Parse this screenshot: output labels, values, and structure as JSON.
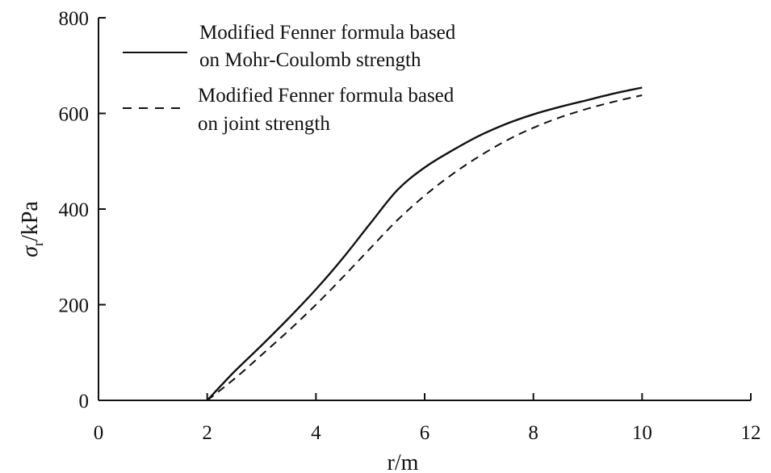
{
  "chart_data": {
    "type": "line",
    "xlabel": "r/m",
    "ylabel_symbol": "σ",
    "ylabel_subscript": "r",
    "ylabel_unit": "/kPa",
    "xlim": [
      0,
      12
    ],
    "ylim": [
      0,
      800
    ],
    "xticks": [
      0,
      2,
      4,
      6,
      8,
      10,
      12
    ],
    "yticks": [
      0,
      200,
      400,
      600,
      800
    ],
    "grid": false,
    "legend_position": "top-left",
    "series": [
      {
        "name": "Modified Fenner formula based on Mohr-Coulomb strength",
        "legend_lines": [
          "Modified Fenner formula based",
          "on Mohr-Coulomb strength"
        ],
        "style": "solid",
        "color": "#111111",
        "x": [
          2.0,
          2.5,
          3.0,
          3.5,
          4.0,
          4.5,
          5.0,
          5.5,
          6.0,
          6.5,
          7.0,
          7.5,
          8.0,
          8.5,
          9.0,
          9.5,
          10.0
        ],
        "y": [
          0,
          60,
          115,
          172,
          232,
          298,
          370,
          440,
          487,
          522,
          553,
          578,
          598,
          614,
          628,
          642,
          654
        ]
      },
      {
        "name": "Modified Fenner formula based on joint strength",
        "legend_lines": [
          "Modified Fenner formula based",
          "on joint strength"
        ],
        "style": "dashed",
        "color": "#111111",
        "x": [
          2.0,
          2.5,
          3.0,
          3.5,
          4.0,
          4.5,
          5.0,
          5.5,
          6.0,
          6.5,
          7.0,
          7.5,
          8.0,
          8.5,
          9.0,
          9.5,
          10.0
        ],
        "y": [
          0,
          45,
          95,
          146,
          200,
          258,
          318,
          377,
          428,
          472,
          510,
          543,
          570,
          592,
          610,
          625,
          638
        ]
      }
    ]
  }
}
